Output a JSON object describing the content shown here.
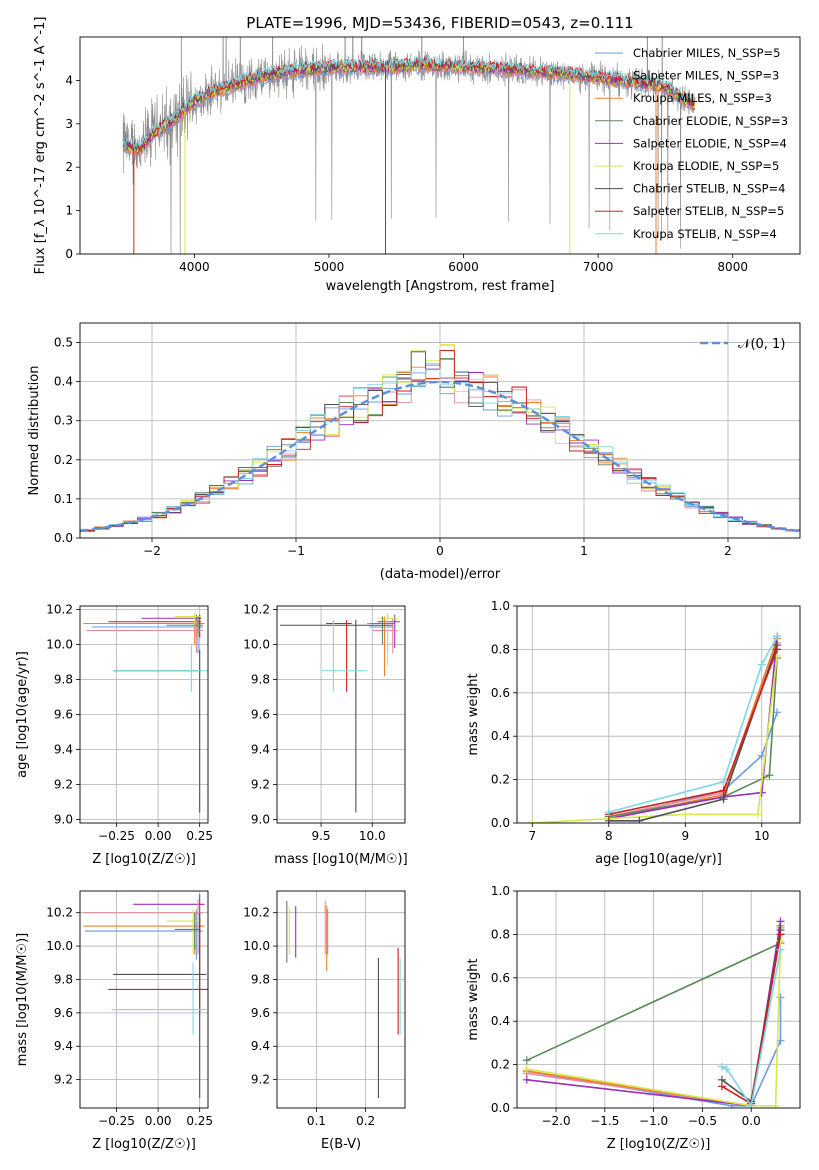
{
  "figure": {
    "title": "PLATE=1996, MJD=53436, FIBERID=0543, z=0.111"
  },
  "chart_data": [
    {
      "id": "spectrum",
      "type": "line",
      "xlabel": "wavelength [Angstrom, rest frame]",
      "ylabel": "Flux [f_λ 10^-17 erg cm^-2 s^-1 A^-1]",
      "xlim": [
        3150,
        8500
      ],
      "ylim": [
        0,
        5
      ],
      "xticks": [
        4000,
        5000,
        6000,
        7000,
        8000
      ],
      "yticks": [
        0,
        1,
        2,
        3,
        4
      ],
      "grid": false,
      "legend_position": "top-right",
      "continuum": {
        "x": [
          3470,
          3600,
          3700,
          3760,
          3850,
          3950,
          4100,
          4300,
          4500,
          4800,
          5100,
          5400,
          5700,
          6000,
          6300,
          6600,
          6900,
          7200,
          7500,
          7700
        ],
        "y": [
          2.5,
          2.4,
          2.8,
          2.9,
          3.1,
          3.4,
          3.7,
          3.9,
          4.1,
          4.25,
          4.3,
          4.3,
          4.35,
          4.3,
          4.25,
          4.2,
          4.1,
          4.0,
          3.85,
          3.45
        ]
      },
      "series": [
        {
          "name": "Chabrier MILES, N_SSP=5",
          "color": "#6a9be5"
        },
        {
          "name": "Salpeter MILES, N_SSP=3",
          "color": "#e68aa0"
        },
        {
          "name": "Kroupa MILES, N_SSP=3",
          "color": "#f07f28"
        },
        {
          "name": "Chabrier ELODIE, N_SSP=3",
          "color": "#5a8a5a"
        },
        {
          "name": "Salpeter ELODIE, N_SSP=4",
          "color": "#9b2fb5"
        },
        {
          "name": "Kroupa ELODIE, N_SSP=5",
          "color": "#d6e84c"
        },
        {
          "name": "Chabrier STELIB, N_SSP=4",
          "color": "#4f4f4f"
        },
        {
          "name": "Salpeter STELIB, N_SSP=5",
          "color": "#cf1f1f"
        },
        {
          "name": "Kroupa STELIB, N_SSP=4",
          "color": "#7fd6e6"
        }
      ]
    },
    {
      "id": "residuals",
      "type": "histogram",
      "xlabel": "(data-model)/error",
      "ylabel": "Normed distribution",
      "xlim": [
        -2.5,
        2.5
      ],
      "ylim": [
        0,
        0.55
      ],
      "xticks": [
        -2,
        -1,
        0,
        1,
        2
      ],
      "yticks": [
        0.0,
        0.1,
        0.2,
        0.3,
        0.4,
        0.5
      ],
      "grid": true,
      "legend_position": "top-right",
      "legend_label": "𝒩(0, 1)",
      "gauss_color": "#5b8fdc"
    },
    {
      "id": "age-vs-Z",
      "type": "scatter",
      "xlabel": "Z [log10(Z/Z☉)]",
      "ylabel": "age  [log10(age/yr)]",
      "xlim": [
        -0.47,
        0.3
      ],
      "ylim": [
        8.98,
        10.22
      ],
      "xticks": [
        -0.25,
        0.0,
        0.25
      ],
      "yticks": [
        9.0,
        9.2,
        9.4,
        9.6,
        9.8,
        10.0,
        10.2
      ],
      "grid": true,
      "points": [
        {
          "x": 0.23,
          "y": 10.15,
          "xlo": -0.1,
          "xhi": 0.26,
          "ylo": 10.05,
          "yhi": 10.17,
          "color": "#9b2fb5"
        },
        {
          "x": 0.22,
          "y": 10.12,
          "xlo": -0.45,
          "xhi": 0.28,
          "ylo": 10.0,
          "yhi": 10.15,
          "color": "#f07f28"
        },
        {
          "x": 0.24,
          "y": 10.1,
          "xlo": -0.4,
          "xhi": 0.27,
          "ylo": 9.95,
          "yhi": 10.16,
          "color": "#6a9be5"
        },
        {
          "x": 0.25,
          "y": 10.13,
          "xlo": -0.3,
          "xhi": 0.26,
          "ylo": 10.04,
          "yhi": 10.17,
          "color": "#cf1f1f"
        },
        {
          "x": 0.23,
          "y": 10.08,
          "xlo": -0.43,
          "xhi": 0.27,
          "ylo": 9.95,
          "yhi": 10.14,
          "color": "#e68aa0"
        },
        {
          "x": 0.22,
          "y": 10.16,
          "xlo": 0.1,
          "xhi": 0.26,
          "ylo": 10.1,
          "yhi": 10.18,
          "color": "#d6e84c"
        },
        {
          "x": 0.24,
          "y": 10.11,
          "xlo": 0.05,
          "xhi": 0.27,
          "ylo": 10.05,
          "yhi": 10.16,
          "color": "#5a8a5a"
        },
        {
          "x": 0.25,
          "y": 9.85,
          "xlo": -0.27,
          "xhi": 0.26,
          "ylo": 9.04,
          "yhi": 9.97,
          "color": "#4f4f4f"
        },
        {
          "x": 0.2,
          "y": 9.85,
          "xlo": -0.27,
          "xhi": 0.3,
          "ylo": 9.73,
          "yhi": 10.0,
          "color": "#7fd6e6"
        }
      ]
    },
    {
      "id": "age-vs-mass",
      "type": "scatter",
      "xlabel": "mass [log10(M/M☉)]",
      "ylabel": "",
      "xlim": [
        9.07,
        10.32
      ],
      "ylim": [
        8.98,
        10.22
      ],
      "xticks": [
        9.5,
        10.0
      ],
      "yticks": [
        9.0,
        9.2,
        9.4,
        9.6,
        9.8,
        10.0,
        10.2
      ],
      "grid": true,
      "points": [
        {
          "x": 10.22,
          "y": 10.13,
          "xlo": 10.05,
          "xhi": 10.27,
          "ylo": 9.98,
          "yhi": 10.17,
          "color": "#9b2fb5"
        },
        {
          "x": 10.12,
          "y": 10.12,
          "xlo": 9.95,
          "xhi": 10.2,
          "ylo": 9.82,
          "yhi": 10.16,
          "color": "#f07f28"
        },
        {
          "x": 10.15,
          "y": 10.1,
          "xlo": 9.97,
          "xhi": 10.22,
          "ylo": 9.95,
          "yhi": 10.15,
          "color": "#6a9be5"
        },
        {
          "x": 9.75,
          "y": 10.12,
          "xlo": 9.55,
          "xhi": 9.8,
          "ylo": 9.73,
          "yhi": 10.14,
          "color": "#cf1f1f"
        },
        {
          "x": 10.2,
          "y": 10.08,
          "xlo": 10.0,
          "xhi": 10.25,
          "ylo": 9.95,
          "yhi": 10.15,
          "color": "#e68aa0"
        },
        {
          "x": 10.15,
          "y": 10.15,
          "xlo": 10.05,
          "xhi": 10.25,
          "ylo": 9.88,
          "yhi": 10.18,
          "color": "#d6e84c"
        },
        {
          "x": 10.1,
          "y": 10.12,
          "xlo": 9.98,
          "xhi": 10.22,
          "ylo": 10.0,
          "yhi": 10.16,
          "color": "#5a8a5a"
        },
        {
          "x": 9.84,
          "y": 10.11,
          "xlo": 9.1,
          "xhi": 10.2,
          "ylo": 9.04,
          "yhi": 10.14,
          "color": "#4f4f4f"
        },
        {
          "x": 9.62,
          "y": 9.85,
          "xlo": 9.5,
          "xhi": 9.95,
          "ylo": 9.73,
          "yhi": 10.14,
          "color": "#7fd6e6"
        }
      ]
    },
    {
      "id": "mass-weight-vs-age",
      "type": "line",
      "xlabel": "age  [log10(age/yr)]",
      "ylabel": "mass weight",
      "xlim": [
        6.8,
        10.5
      ],
      "ylim": [
        0,
        1
      ],
      "xticks": [
        7,
        8,
        9,
        10
      ],
      "yticks": [
        0.0,
        0.2,
        0.4,
        0.6,
        0.8,
        1.0
      ],
      "grid": true,
      "series": [
        {
          "name": "Chabrier MILES",
          "color": "#6a9be5",
          "x": [
            8.0,
            9.5,
            10.0,
            10.2
          ],
          "y": [
            0.02,
            0.15,
            0.31,
            0.51
          ]
        },
        {
          "name": "Salpeter MILES",
          "color": "#e68aa0",
          "x": [
            8.0,
            9.5,
            10.2
          ],
          "y": [
            0.03,
            0.14,
            0.83
          ]
        },
        {
          "name": "Kroupa MILES",
          "color": "#f07f28",
          "x": [
            8.0,
            9.5,
            10.2
          ],
          "y": [
            0.02,
            0.13,
            0.85
          ]
        },
        {
          "name": "Chabrier ELODIE",
          "color": "#5a8a5a",
          "x": [
            8.0,
            9.5,
            10.1,
            10.2
          ],
          "y": [
            0.03,
            0.12,
            0.22,
            0.76
          ]
        },
        {
          "name": "Salpeter ELODIE",
          "color": "#9b2fb5",
          "x": [
            8.0,
            9.5,
            10.0,
            10.2
          ],
          "y": [
            0.02,
            0.12,
            0.14,
            0.86
          ]
        },
        {
          "name": "Kroupa ELODIE",
          "color": "#d6e84c",
          "x": [
            7.0,
            9.0,
            9.95,
            10.2
          ],
          "y": [
            0.0,
            0.04,
            0.04,
            0.77
          ]
        },
        {
          "name": "Chabrier STELIB",
          "color": "#4f4f4f",
          "x": [
            8.0,
            8.4,
            9.5,
            10.2
          ],
          "y": [
            0.01,
            0.01,
            0.11,
            0.82
          ]
        },
        {
          "name": "Salpeter STELIB",
          "color": "#cf1f1f",
          "x": [
            8.0,
            9.5,
            10.2
          ],
          "y": [
            0.04,
            0.15,
            0.8
          ]
        },
        {
          "name": "Kroupa STELIB",
          "color": "#7fd6e6",
          "x": [
            8.0,
            9.5,
            10.0,
            10.2
          ],
          "y": [
            0.05,
            0.19,
            0.73,
            0.86
          ]
        }
      ]
    },
    {
      "id": "mass-vs-Z",
      "type": "scatter",
      "xlabel": "Z [log10(Z/Z☉)]",
      "ylabel": "mass [log10(M/M☉)]",
      "xlim": [
        -0.47,
        0.3
      ],
      "ylim": [
        9.03,
        10.33
      ],
      "xticks": [
        -0.25,
        0.0,
        0.25
      ],
      "yticks": [
        9.2,
        9.4,
        9.6,
        9.8,
        10.0,
        10.2
      ],
      "grid": true,
      "points": [
        {
          "x": 0.25,
          "y": 10.25,
          "xlo": -0.15,
          "xhi": 0.28,
          "ylo": 10.08,
          "yhi": 10.31,
          "color": "#9b2fb5"
        },
        {
          "x": 0.22,
          "y": 10.12,
          "xlo": -0.45,
          "xhi": 0.28,
          "ylo": 9.95,
          "yhi": 10.2,
          "color": "#f07f28"
        },
        {
          "x": 0.23,
          "y": 10.09,
          "xlo": -0.44,
          "xhi": 0.27,
          "ylo": 9.92,
          "yhi": 10.22,
          "color": "#6a9be5"
        },
        {
          "x": 0.25,
          "y": 9.74,
          "xlo": -0.3,
          "xhi": 0.3,
          "ylo": 9.6,
          "yhi": 10.15,
          "color": "#cf1f1f"
        },
        {
          "x": 0.24,
          "y": 10.2,
          "xlo": -0.45,
          "xhi": 0.27,
          "ylo": 9.95,
          "yhi": 10.28,
          "color": "#e68aa0"
        },
        {
          "x": 0.21,
          "y": 10.15,
          "xlo": 0.05,
          "xhi": 0.26,
          "ylo": 9.95,
          "yhi": 10.22,
          "color": "#d6e84c"
        },
        {
          "x": 0.22,
          "y": 10.1,
          "xlo": 0.1,
          "xhi": 0.25,
          "ylo": 9.98,
          "yhi": 10.2,
          "color": "#5a8a5a"
        },
        {
          "x": 0.25,
          "y": 9.83,
          "xlo": -0.27,
          "xhi": 0.29,
          "ylo": 9.09,
          "yhi": 10.2,
          "color": "#4f4f4f"
        },
        {
          "x": 0.21,
          "y": 9.62,
          "xlo": -0.28,
          "xhi": 0.29,
          "ylo": 9.47,
          "yhi": 9.9,
          "color": "#7fd6e6"
        }
      ]
    },
    {
      "id": "mass-vs-EBV",
      "type": "scatter",
      "xlabel": "E(B-V)",
      "ylabel": "",
      "xlim": [
        0.02,
        0.28
      ],
      "ylim": [
        9.03,
        10.33
      ],
      "xticks": [
        0.1,
        0.2
      ],
      "yticks": [
        9.2,
        9.4,
        9.6,
        9.8,
        10.0,
        10.2
      ],
      "grid": true,
      "points": [
        {
          "x": 0.045,
          "y": 10.12,
          "ylo": 9.95,
          "yhi": 10.23,
          "color": "#d6e84c"
        },
        {
          "x": 0.04,
          "y": 10.1,
          "ylo": 9.9,
          "yhi": 10.27,
          "color": "#5a8a5a"
        },
        {
          "x": 0.058,
          "y": 10.1,
          "ylo": 9.93,
          "yhi": 10.24,
          "color": "#9b2fb5"
        },
        {
          "x": 0.118,
          "y": 10.1,
          "ylo": 9.95,
          "yhi": 10.27,
          "color": "#e68aa0"
        },
        {
          "x": 0.121,
          "y": 10.05,
          "ylo": 9.85,
          "yhi": 10.24,
          "color": "#f07f28"
        },
        {
          "x": 0.123,
          "y": 10.1,
          "ylo": 9.95,
          "yhi": 10.22,
          "color": "#6a9be5"
        },
        {
          "x": 0.226,
          "y": 9.6,
          "ylo": 9.09,
          "yhi": 9.93,
          "color": "#4f4f4f"
        },
        {
          "x": 0.266,
          "y": 9.8,
          "ylo": 9.47,
          "yhi": 9.99,
          "color": "#cf1f1f"
        },
        {
          "x": 0.27,
          "y": 9.7,
          "ylo": 9.47,
          "yhi": 9.93,
          "color": "#7fd6e6"
        }
      ]
    },
    {
      "id": "mass-weight-vs-Z",
      "type": "line",
      "xlabel": "Z [log10(Z/Z☉)]",
      "ylabel": "mass weight",
      "xlim": [
        -2.4,
        0.5
      ],
      "ylim": [
        0,
        1
      ],
      "xticks": [
        -2.0,
        -1.5,
        -1.0,
        -0.5,
        0.0
      ],
      "yticks": [
        0.0,
        0.2,
        0.4,
        0.6,
        0.8,
        1.0
      ],
      "grid": true,
      "series": [
        {
          "name": "Chabrier MILES",
          "color": "#6a9be5",
          "x": [
            -2.3,
            -0.2,
            0.0,
            0.3,
            0.3
          ],
          "y": [
            0.17,
            0.01,
            0.01,
            0.31,
            0.51
          ]
        },
        {
          "name": "Salpeter MILES",
          "color": "#e68aa0",
          "x": [
            -2.3,
            0.0,
            0.3
          ],
          "y": [
            0.16,
            0.01,
            0.83
          ]
        },
        {
          "name": "Kroupa MILES",
          "color": "#f07f28",
          "x": [
            -2.3,
            0.0,
            0.3
          ],
          "y": [
            0.17,
            0.01,
            0.84
          ]
        },
        {
          "name": "Chabrier ELODIE",
          "color": "#5a8a5a",
          "x": [
            -2.3,
            0.3
          ],
          "y": [
            0.22,
            0.76
          ]
        },
        {
          "name": "Salpeter ELODIE",
          "color": "#9b2fb5",
          "x": [
            -2.3,
            0.0,
            0.3
          ],
          "y": [
            0.13,
            0.01,
            0.86
          ]
        },
        {
          "name": "Kroupa ELODIE",
          "color": "#d6e84c",
          "x": [
            -2.3,
            0.0,
            0.25,
            0.3
          ],
          "y": [
            0.18,
            0.01,
            0.01,
            0.77
          ]
        },
        {
          "name": "Chabrier STELIB",
          "color": "#4f4f4f",
          "x": [
            -0.3,
            0.0,
            0.3
          ],
          "y": [
            0.13,
            0.03,
            0.82
          ]
        },
        {
          "name": "Salpeter STELIB",
          "color": "#cf1f1f",
          "x": [
            -0.3,
            0.0,
            0.3
          ],
          "y": [
            0.1,
            0.02,
            0.8
          ]
        },
        {
          "name": "Kroupa STELIB",
          "color": "#7fd6e6",
          "x": [
            -0.3,
            -0.25,
            0.0,
            0.3
          ],
          "y": [
            0.19,
            0.18,
            0.01,
            0.73
          ]
        }
      ]
    }
  ]
}
